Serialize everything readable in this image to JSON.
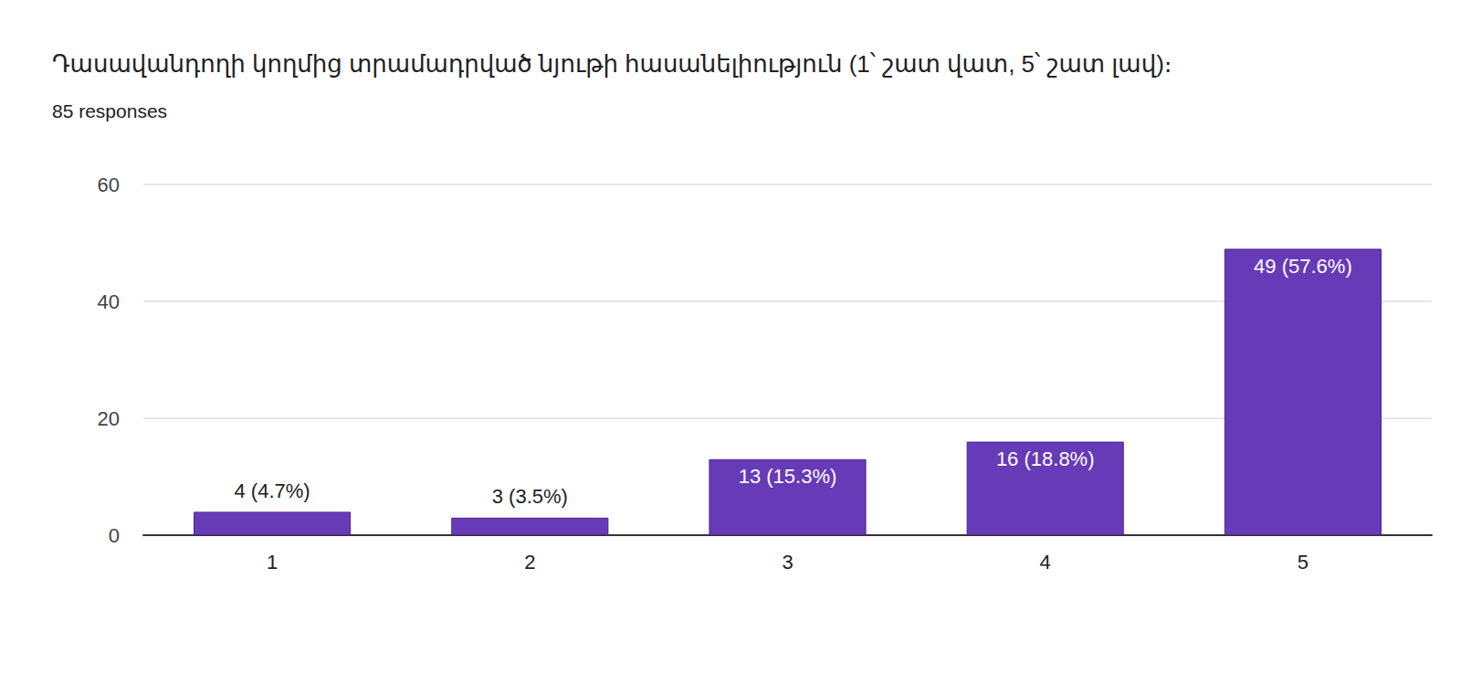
{
  "chart_data": {
    "type": "bar",
    "title": "Դասավանդողի կողմից տրամադրված նյութի հասանելիություն (1՝ շատ վատ, 5՝ շատ լավ)։",
    "subtitle": "85 responses",
    "categories": [
      "1",
      "2",
      "3",
      "4",
      "5"
    ],
    "values": [
      4,
      3,
      13,
      16,
      49
    ],
    "value_labels": [
      "4 (4.7%)",
      "3 (3.5%)",
      "13 (15.3%)",
      "16 (18.8%)",
      "49 (57.6%)"
    ],
    "data_labels": true,
    "color": "#673ab7",
    "ylim": [
      0,
      60
    ],
    "yticks": [
      0,
      20,
      40,
      60
    ],
    "grid": true
  }
}
